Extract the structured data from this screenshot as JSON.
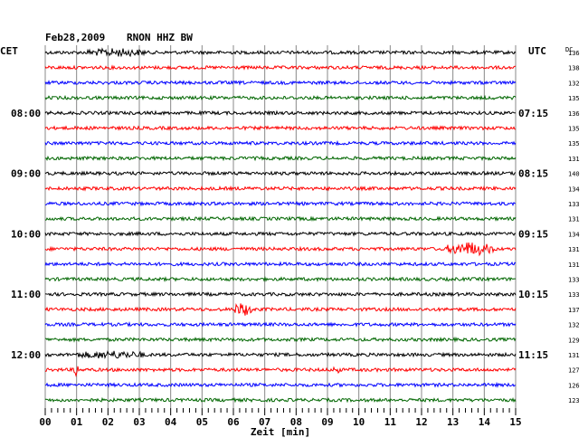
{
  "header": {
    "date": "Feb28,2009",
    "station": "RNON HHZ BW",
    "left_zone": "CET",
    "right_zone": "UTC",
    "dc_label": "DC"
  },
  "chart_data": {
    "type": "line",
    "title": "Feb28,2009   RNON HHZ BW",
    "xlabel": "Zeit [min]",
    "xlim": [
      0,
      15
    ],
    "x_ticks": [
      "00",
      "01",
      "02",
      "03",
      "04",
      "05",
      "06",
      "07",
      "08",
      "09",
      "10",
      "11",
      "12",
      "13",
      "14",
      "15"
    ],
    "left_time_labels": [
      "08:00",
      "09:00",
      "10:00",
      "11:00",
      "12:00"
    ],
    "right_time_labels": [
      "07:15",
      "08:15",
      "09:15",
      "10:15",
      "11:15"
    ],
    "trace_colors": [
      "#000000",
      "#ff0000",
      "#0000ff",
      "#006600"
    ],
    "dc_offsets": [
      136,
      138,
      132,
      135,
      136,
      135,
      135,
      131,
      140,
      134,
      133,
      131,
      134,
      131,
      131,
      133,
      133,
      137,
      132,
      129,
      131,
      127,
      126,
      123
    ],
    "events": [
      {
        "trace": 0,
        "minute_start": 1.3,
        "minute_end": 3.2,
        "amplitude": 3.2
      },
      {
        "trace": 13,
        "minute_start": 12.8,
        "minute_end": 14.3,
        "amplitude": 6.5
      },
      {
        "trace": 17,
        "minute_start": 6.0,
        "minute_end": 6.6,
        "amplitude": 6.5
      },
      {
        "trace": 20,
        "minute_start": 1.0,
        "minute_end": 3.2,
        "amplitude": 3.0
      },
      {
        "trace": 21,
        "minute_start": 0.9,
        "minute_end": 1.05,
        "amplitude": 9.0
      },
      {
        "trace": 21,
        "minute_start": 9.2,
        "minute_end": 9.4,
        "amplitude": 4.0
      }
    ]
  }
}
